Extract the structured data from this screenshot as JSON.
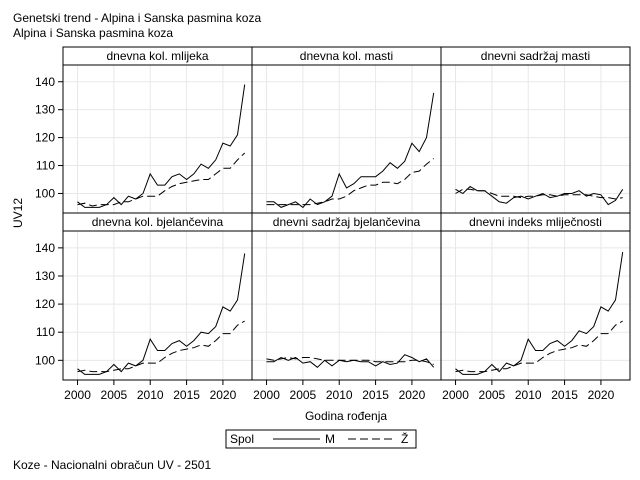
{
  "title": "Genetski trend - Alpina i Sanska pasmina koza",
  "subtitle": "Alpina i Sanska pasmina koza",
  "footnote": "Koze - Nacionalni obračun UV - 2501",
  "colors": {
    "line": "#000000",
    "grid": "#e8e8e8",
    "background": "#ffffff"
  },
  "chart_data": {
    "type": "line",
    "layout": "2x3 panel grid",
    "xlabel": "Godina rođenja",
    "ylabel": "UV12",
    "xlim": [
      1998,
      2024
    ],
    "ylim": [
      93,
      146
    ],
    "xticks": [
      2000,
      2005,
      2010,
      2015,
      2020
    ],
    "yticks": [
      100,
      110,
      120,
      130,
      140
    ],
    "grid": true,
    "legend": {
      "title": "Spol",
      "position": "bottom-center",
      "entries": [
        {
          "name": "M",
          "style": "solid"
        },
        {
          "name": "Ž",
          "style": "dashed"
        }
      ]
    },
    "x": [
      2000,
      2001,
      2002,
      2003,
      2004,
      2005,
      2006,
      2007,
      2008,
      2009,
      2010,
      2011,
      2012,
      2013,
      2014,
      2015,
      2016,
      2017,
      2018,
      2019,
      2020,
      2021,
      2022,
      2023
    ],
    "panels": [
      {
        "label": "dnevna kol. mlijeka",
        "series": [
          {
            "name": "M",
            "values": [
              97,
              95,
              95,
              95,
              96,
              98.5,
              96,
              99,
              98,
              100,
              107,
              103,
              103,
              106,
              107,
              105,
              107,
              110.5,
              109,
              112,
              118,
              117,
              121,
              139
            ]
          },
          {
            "name": "Ž",
            "values": [
              96,
              96.5,
              95.5,
              96,
              96,
              96,
              97,
              97,
              98,
              99,
              99,
              99,
              101,
              102.5,
              103.5,
              104,
              104.5,
              105,
              105,
              107,
              109,
              109,
              112,
              114.5
            ]
          }
        ]
      },
      {
        "label": "dnevna kol. masti",
        "series": [
          {
            "name": "M",
            "values": [
              97,
              97,
              95,
              96,
              97,
              95,
              98,
              96,
              97,
              99,
              107,
              102,
              103.5,
              106,
              106,
              106,
              108,
              111,
              109,
              111.5,
              118,
              115,
              120,
              136
            ]
          },
          {
            "name": "Ž",
            "values": [
              96,
              96,
              96,
              96,
              96,
              96,
              96,
              96.5,
              97,
              98,
              98,
              99,
              101,
              102,
              103,
              103,
              104,
              104,
              103.5,
              105,
              107.5,
              108,
              110.5,
              112.5
            ]
          }
        ]
      },
      {
        "label": "dnevni sadržaj masti",
        "series": [
          {
            "name": "M",
            "values": [
              101.5,
              100,
              102.5,
              101,
              101,
              99,
              97,
              96.5,
              98.5,
              99,
              98,
              99,
              100,
              98.5,
              99,
              100,
              100,
              101,
              99,
              100,
              99.5,
              96,
              97.5,
              101.5
            ]
          },
          {
            "name": "Ž",
            "values": [
              100,
              101.5,
              101.5,
              101,
              101,
              100,
              99,
              99,
              99,
              98.5,
              99,
              99,
              99.5,
              99.5,
              99,
              99.5,
              99.5,
              99.5,
              99.5,
              99,
              98.5,
              98.5,
              98,
              98.5
            ]
          }
        ]
      },
      {
        "label": "dnevna kol. bjelančevina",
        "series": [
          {
            "name": "M",
            "values": [
              97,
              95,
              95,
              95,
              96,
              98.5,
              96,
              99,
              98,
              100,
              107.5,
              103.5,
              103.5,
              106,
              107,
              105,
              107,
              110,
              109.5,
              112,
              119,
              117.5,
              121.5,
              138
            ]
          },
          {
            "name": "Ž",
            "values": [
              96,
              96.5,
              96,
              96,
              96,
              96.5,
              97,
              97,
              98,
              99,
              99,
              99,
              101,
              102.5,
              103.5,
              104,
              104.5,
              105.5,
              105,
              107,
              109.5,
              109.5,
              112.5,
              114
            ]
          }
        ]
      },
      {
        "label": "dnevni sadržaj bjelančevina",
        "series": [
          {
            "name": "M",
            "values": [
              99.5,
              99.5,
              101,
              100,
              101,
              99,
              99.5,
              97.5,
              100,
              98,
              100,
              99.5,
              100,
              99.5,
              99.5,
              98,
              99.5,
              98.5,
              99,
              102,
              101,
              99.5,
              100.5,
              97.5
            ]
          },
          {
            "name": "Ž",
            "values": [
              100.5,
              100,
              100.5,
              101,
              100.5,
              101,
              101,
              100.5,
              100,
              100,
              100,
              100,
              100,
              100,
              100,
              99.5,
              99.5,
              99.5,
              99.5,
              99.5,
              100,
              100,
              99.5,
              98.5
            ]
          }
        ]
      },
      {
        "label": "dnevni indeks mliječnosti",
        "series": [
          {
            "name": "M",
            "values": [
              97,
              95,
              95,
              95,
              96,
              98.5,
              96,
              99,
              98,
              100,
              107.5,
              103.5,
              103.5,
              106,
              107,
              105,
              107,
              110.5,
              109.5,
              112,
              119,
              117.5,
              121.5,
              138.5
            ]
          },
          {
            "name": "Ž",
            "values": [
              96,
              96.5,
              96,
              96,
              96,
              96.5,
              97,
              97,
              98,
              99,
              99,
              99,
              101,
              102.5,
              103.5,
              104,
              104.5,
              105.5,
              105,
              107,
              109.5,
              109.5,
              112.5,
              114
            ]
          }
        ]
      }
    ]
  }
}
